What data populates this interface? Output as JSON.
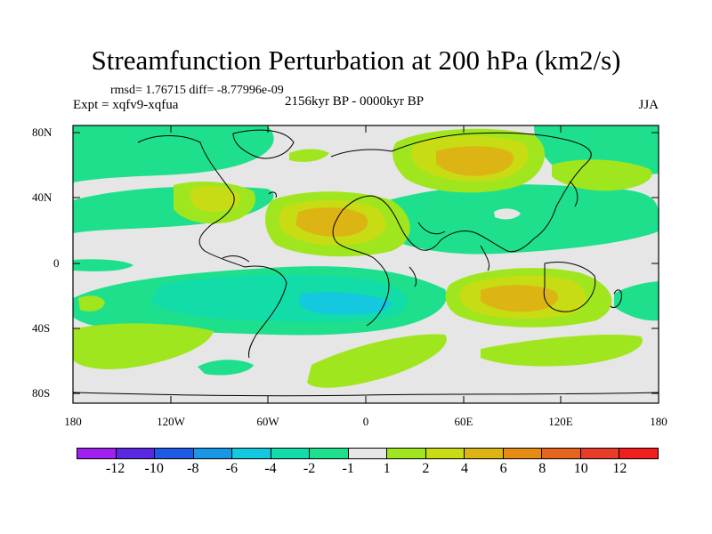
{
  "title": "Streamfunction Perturbation at 200 hPa (km2/s)",
  "stats": "rmsd= 1.76715  diff= -8.77996e-09",
  "experiment": "Expt = xqfv9-xqfua",
  "period": "2156kyr BP - 0000kyr BP",
  "season": "JJA",
  "lat_labels": [
    "80N",
    "40N",
    "0",
    "40S",
    "80S"
  ],
  "lon_labels": [
    "180",
    "120W",
    "60W",
    "0",
    "60E",
    "120E",
    "180"
  ],
  "colorbar": {
    "labels": [
      "-12",
      "-10",
      "-8",
      "-6",
      "-4",
      "-2",
      "-1",
      "1",
      "2",
      "4",
      "6",
      "8",
      "10",
      "12"
    ],
    "colors": [
      "#a020f0",
      "#5a28e0",
      "#1e5ae6",
      "#1a96e6",
      "#14c8e0",
      "#12dca8",
      "#1ee08c",
      "#e6e6e6",
      "#a0e61e",
      "#c8dc14",
      "#dcb414",
      "#e68c14",
      "#e6641e",
      "#e63c28",
      "#f01e1e"
    ]
  },
  "field": {
    "background": "#e6e6e6",
    "coast_color": "#000000"
  }
}
